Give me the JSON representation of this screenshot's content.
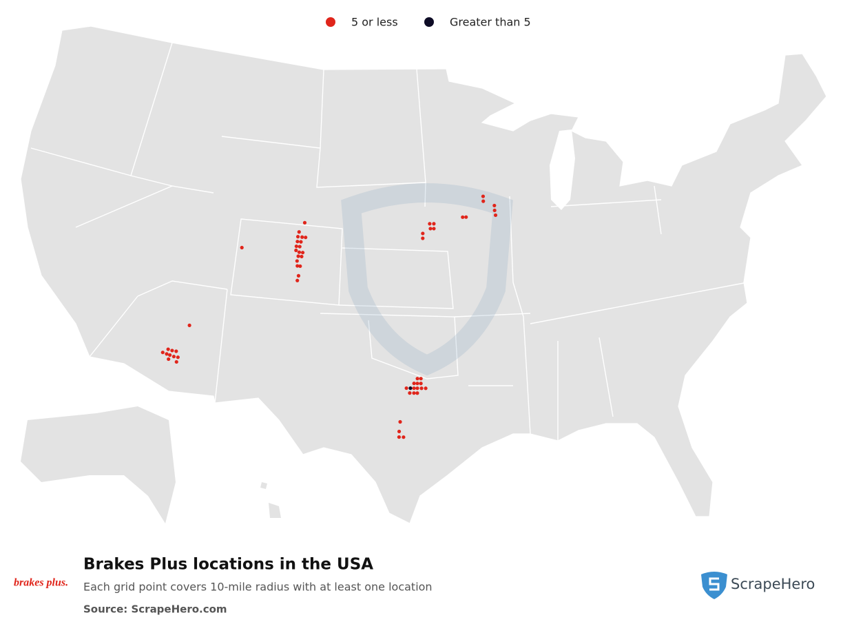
{
  "chart_data": {
    "type": "map",
    "title": "Brakes Plus locations in the USA",
    "subtitle": "Each grid point covers 10-mile radius with at least one location",
    "source": "Source: ScrapeHero.com",
    "brand_logo": "brakes plus.",
    "publisher": "ScrapeHero",
    "series": [
      {
        "name": "5 or less",
        "color": "#e0251b",
        "lon": [
          -104.69,
          -105.02,
          -105.07,
          -104.78,
          -104.54,
          -105.07,
          -104.83,
          -105.11,
          -104.88,
          -105.11,
          -104.88,
          -104.64,
          -104.92,
          -104.69,
          -104.97,
          -104.92,
          -104.73,
          -104.78,
          -104.83,
          -108.79,
          -111.45,
          -112.53,
          -112.27,
          -112.01,
          -112.83,
          -112.57,
          -112.36,
          -112.1,
          -111.84,
          -112.4,
          -111.88,
          -96.76,
          -96.54,
          -96.97,
          -96.76,
          -96.54,
          -97.44,
          -96.97,
          -96.76,
          -96.5,
          -96.24,
          -97.23,
          -96.97,
          -96.76,
          -97.79,
          -97.84,
          -97.84,
          -97.57,
          -95.99,
          -95.7,
          -95.94,
          -95.7,
          -96.47,
          -96.47,
          -93.68,
          -93.44,
          -92.19,
          -92.19,
          -91.42,
          -91.42,
          -91.37
        ],
        "lat": [
          41.06,
          40.56,
          40.31,
          40.31,
          40.31,
          40.06,
          40.06,
          39.81,
          39.81,
          39.6,
          39.52,
          39.52,
          39.31,
          39.31,
          39.06,
          38.81,
          38.81,
          38.31,
          38.06,
          39.42,
          35.06,
          33.66,
          33.63,
          33.63,
          33.45,
          33.41,
          33.38,
          33.34,
          33.34,
          33.16,
          33.09,
          33.32,
          33.32,
          33.07,
          33.07,
          33.07,
          32.82,
          32.82,
          32.82,
          32.82,
          32.82,
          32.57,
          32.57,
          32.57,
          31.07,
          30.57,
          30.28,
          30.28,
          41.3,
          41.3,
          41.05,
          41.05,
          40.8,
          40.55,
          41.62,
          41.62,
          42.66,
          42.41,
          42.16,
          41.91,
          41.66
        ]
      },
      {
        "name": "Greater than 5",
        "color": "#0e0c26",
        "lon": [
          -97.19
        ],
        "lat": [
          32.82
        ]
      }
    ]
  }
}
